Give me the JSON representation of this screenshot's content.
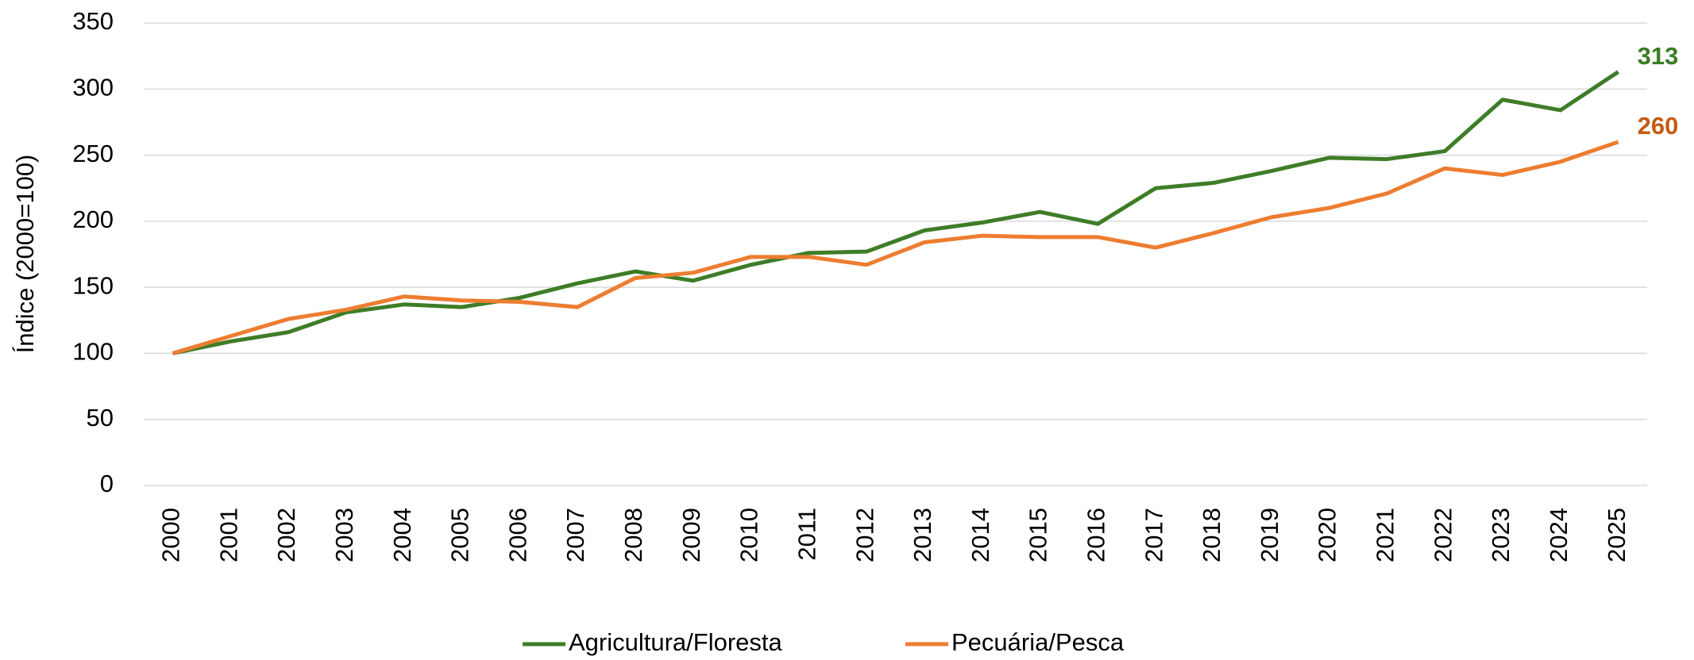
{
  "chart_data": {
    "type": "line",
    "y_label": "Índice (2000=100)",
    "categories": [
      "2000",
      "2001",
      "2002",
      "2003",
      "2004",
      "2005",
      "2006",
      "2007",
      "2008",
      "2009",
      "2010",
      "2011",
      "2012",
      "2013",
      "2014",
      "2015",
      "2016",
      "2017",
      "2018",
      "2019",
      "2020",
      "2021",
      "2022",
      "2023",
      "2024",
      "2025"
    ],
    "series": [
      {
        "name": "Agricultura/Floresta",
        "color": "#3e7d27",
        "label_color": "#3a7d22",
        "values": [
          100,
          109,
          116,
          131,
          137,
          135,
          142,
          153,
          162,
          155,
          167,
          176,
          177,
          193,
          199,
          207,
          198,
          225,
          229,
          238,
          248,
          247,
          253,
          292,
          284,
          313
        ]
      },
      {
        "name": "Pecuária/Pesca",
        "color": "#ed7d31",
        "label_color": "#c55a11",
        "values": [
          100,
          113,
          126,
          133,
          143,
          140,
          139,
          135,
          157,
          161,
          173,
          173,
          167,
          184,
          189,
          188,
          188,
          180,
          191,
          203,
          210,
          221,
          240,
          235,
          245,
          260
        ]
      }
    ],
    "ylim": [
      0,
      350
    ],
    "yticks": [
      0,
      50,
      100,
      150,
      200,
      250,
      300,
      350
    ],
    "grid": true,
    "legend": "bottom"
  }
}
